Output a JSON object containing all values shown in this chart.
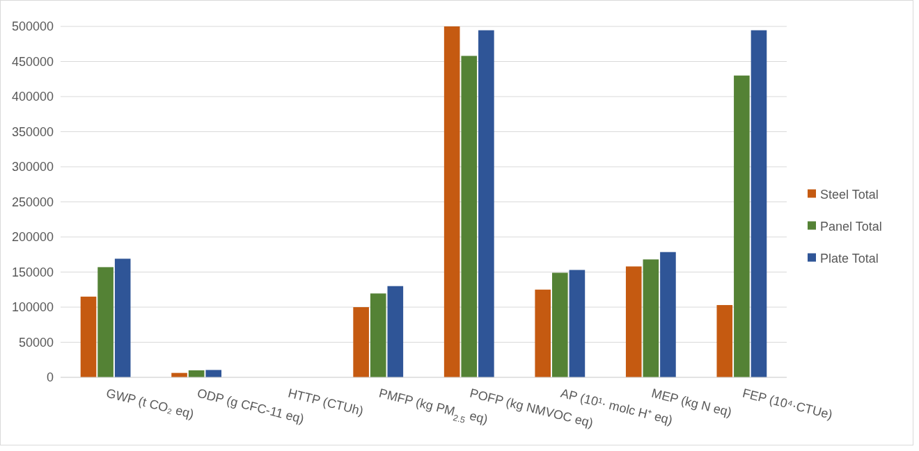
{
  "chart_data": {
    "type": "bar",
    "categories": [
      "GWP (t CO₂ eq)",
      "ODP (g CFC-11 eq)",
      "HTTP (CTUh)",
      "PMFP (kg PM$_{2.5}$ eq)",
      "POFP (kg NMVOC eq)",
      "AP (10¹· molc H⁺ eq)",
      "MEP (kg N eq)",
      "FEP (10⁴·CTUe)"
    ],
    "series": [
      {
        "name": "Steel Total",
        "color": "#c55a11",
        "values": [
          115000,
          6300,
          0,
          100000,
          500000,
          125000,
          158000,
          103000
        ]
      },
      {
        "name": "Panel Total",
        "color": "#548235",
        "values": [
          157000,
          10000,
          0,
          119500,
          458000,
          149000,
          168000,
          430000
        ]
      },
      {
        "name": "Plate Total",
        "color": "#2f5597",
        "values": [
          169000,
          10500,
          0,
          130000,
          494500,
          153000,
          178500,
          494500
        ]
      }
    ],
    "ylim": [
      0,
      500000
    ],
    "yticks": [
      0,
      50000,
      100000,
      150000,
      200000,
      250000,
      300000,
      350000,
      400000,
      450000,
      500000
    ],
    "grid": "y",
    "legend": "right"
  }
}
